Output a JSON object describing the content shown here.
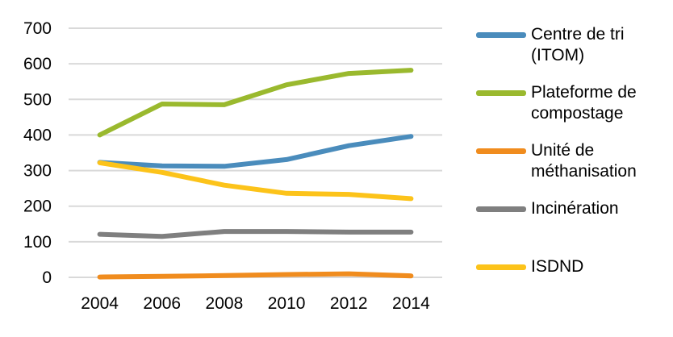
{
  "chart_data": {
    "type": "line",
    "categories": [
      "2004",
      "2006",
      "2008",
      "2010",
      "2012",
      "2014"
    ],
    "ylim": [
      0,
      700
    ],
    "yticks": [
      "0",
      "100",
      "200",
      "300",
      "400",
      "500",
      "600",
      "700"
    ],
    "grid": true,
    "legend_position": "right",
    "series": [
      {
        "name": "Centre de tri\n(ITOM)",
        "color": "#4a8cbc",
        "values": [
          323,
          313,
          312,
          331,
          370,
          396
        ]
      },
      {
        "name": "Plateforme de\ncompostage",
        "color": "#9ab92e",
        "values": [
          400,
          487,
          485,
          541,
          573,
          582
        ]
      },
      {
        "name": "Unité de\nméthanisation",
        "color": "#f08c1e",
        "values": [
          1,
          3,
          5,
          8,
          10,
          4
        ]
      },
      {
        "name": "Incinération",
        "color": "#7f7f7f",
        "values": [
          121,
          115,
          129,
          129,
          127,
          127
        ]
      },
      {
        "name": "ISDND",
        "color": "#fcc31a",
        "values": [
          322,
          295,
          259,
          236,
          233,
          221
        ]
      }
    ]
  }
}
